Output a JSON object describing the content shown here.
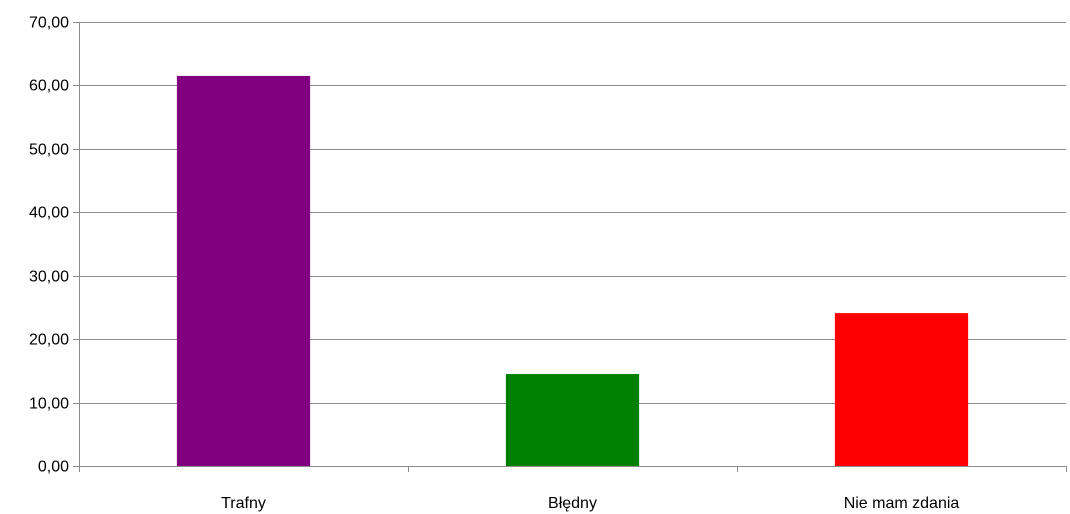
{
  "chart_data": {
    "type": "bar",
    "title": "",
    "xlabel": "",
    "ylabel": "",
    "categories": [
      "Trafny",
      "Błędny",
      "Nie mam zdania"
    ],
    "values": [
      61.5,
      14.5,
      24.1
    ],
    "colors": [
      "#800080",
      "#008000",
      "#ff0000"
    ],
    "ylim": [
      0,
      70
    ],
    "yticks": [
      0,
      10,
      20,
      30,
      40,
      50,
      60,
      70
    ],
    "ytick_labels": [
      "0,00",
      "10,00",
      "20,00",
      "30,00",
      "40,00",
      "50,00",
      "60,00",
      "70,00"
    ],
    "grid": true,
    "legend": "none"
  }
}
